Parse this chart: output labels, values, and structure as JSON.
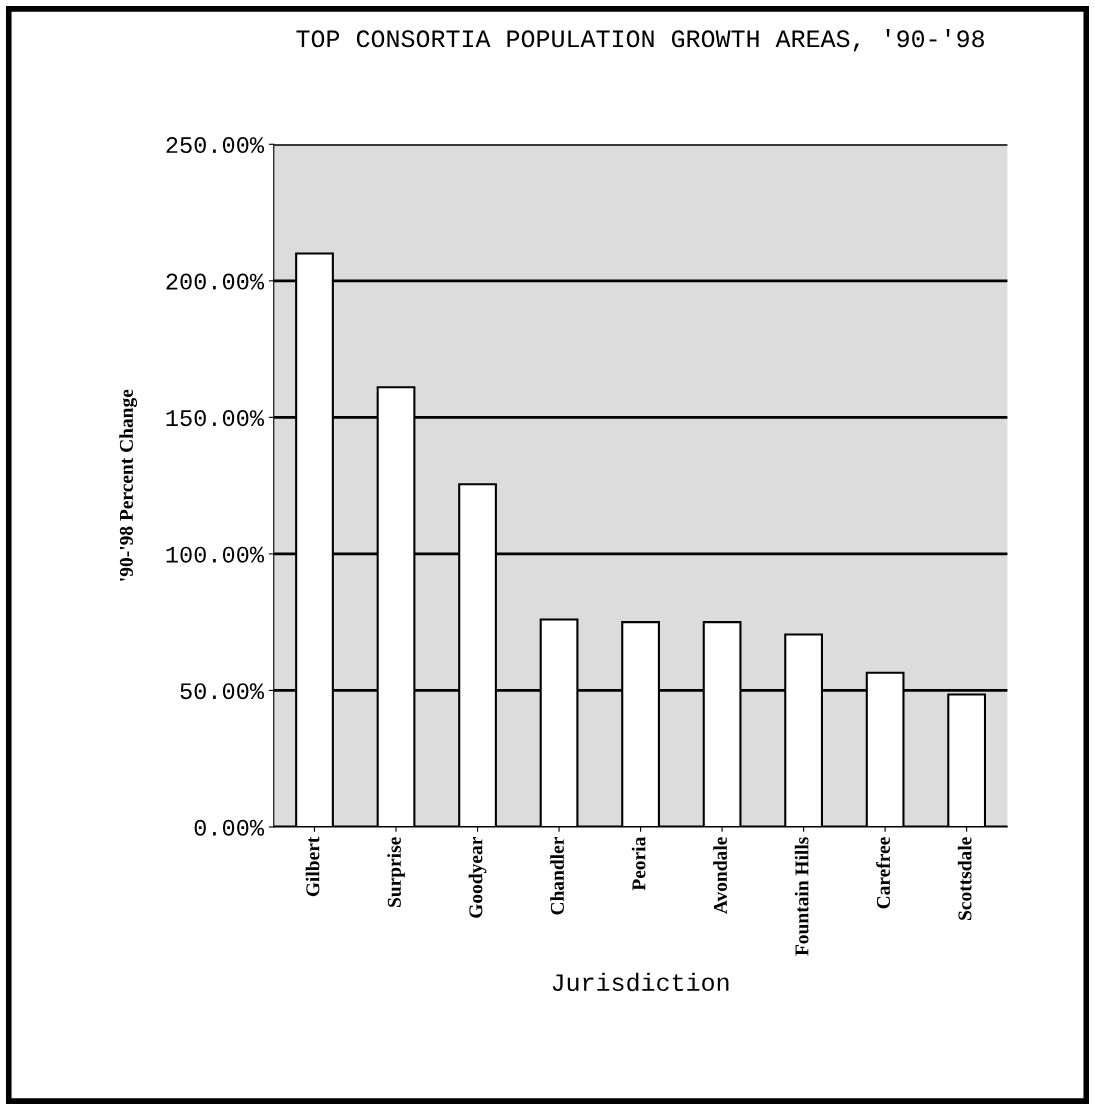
{
  "chart_data": {
    "type": "bar",
    "title": "TOP CONSORTIA POPULATION GROWTH AREAS, '90-'98",
    "xlabel": "Jurisdiction",
    "ylabel": "'90-'98 Percent Change",
    "categories": [
      "Gilbert",
      "Surprise",
      "Goodyear",
      "Chandler",
      "Peoria",
      "Avondale",
      "Fountain Hills",
      "Carefree",
      "Scottsdale"
    ],
    "values": [
      210,
      161,
      125.5,
      76,
      75,
      75,
      70.5,
      56.5,
      48.5
    ],
    "color": "#ffffff",
    "ylim": [
      0,
      250
    ],
    "yticks": [
      {
        "value": 0,
        "label": "0.00%"
      },
      {
        "value": 50,
        "label": "50.00%"
      },
      {
        "value": 100,
        "label": "100.00%"
      },
      {
        "value": 150,
        "label": "150.00%"
      },
      {
        "value": 200,
        "label": "200.00%"
      },
      {
        "value": 250,
        "label": "250.00%"
      }
    ],
    "grid": "y"
  }
}
